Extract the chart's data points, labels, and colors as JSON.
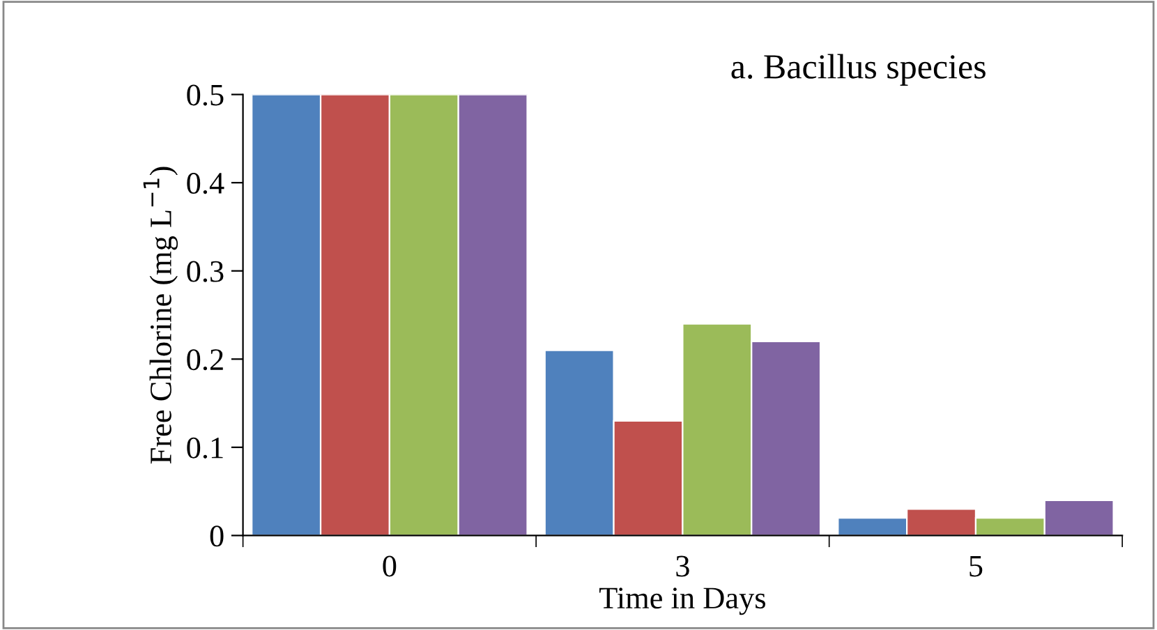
{
  "chart_data": {
    "type": "bar",
    "title": "a. Bacillus species",
    "xlabel": "Time in Days",
    "ylabel": "Free Chlorine (mg L$^{−1}$)",
    "categories": [
      "0",
      "3",
      "5"
    ],
    "series": [
      {
        "color": "#4f81bd",
        "values": [
          0.5,
          0.21,
          0.02
        ]
      },
      {
        "color": "#c0504d",
        "values": [
          0.5,
          0.13,
          0.03
        ]
      },
      {
        "color": "#9bbb59",
        "values": [
          0.5,
          0.24,
          0.02
        ]
      },
      {
        "color": "#8064a2",
        "values": [
          0.5,
          0.22,
          0.04
        ]
      }
    ],
    "ylim": [
      0,
      0.5
    ],
    "yticks": [
      {
        "value": 0,
        "label": "0"
      },
      0.1,
      0.2,
      0.3,
      0.4,
      0.5
    ],
    "grid": false,
    "legend": false
  }
}
